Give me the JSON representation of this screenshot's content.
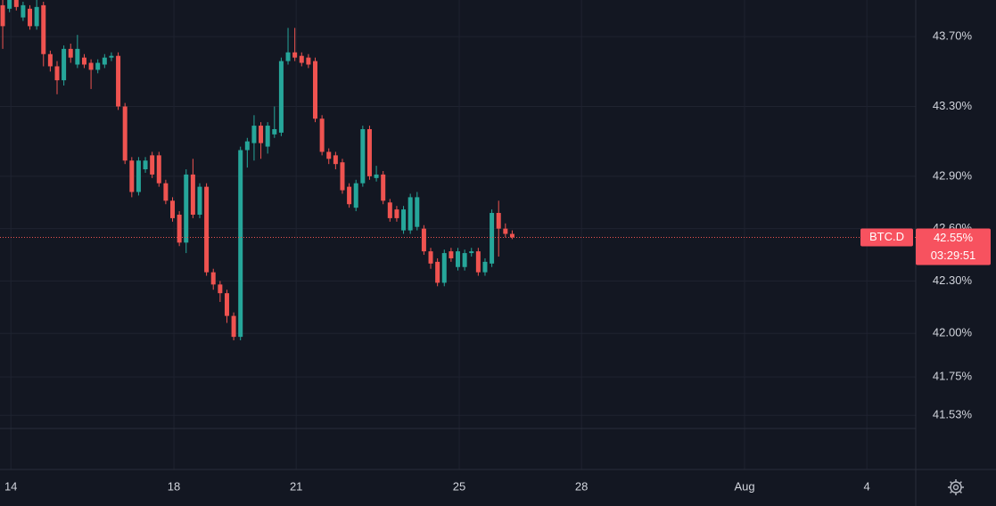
{
  "chart_data": {
    "type": "candlestick",
    "symbol": "BTC.D",
    "last_price": {
      "value": 42.55,
      "label": "42.55%"
    },
    "countdown": "03:29:51",
    "up_color": "#26a69a",
    "down_color": "#ef5350",
    "open": [
      43.88,
      43.86,
      43.91,
      43.81,
      43.86,
      43.76,
      43.88,
      43.6,
      43.53,
      43.45,
      43.63,
      43.54,
      43.58,
      43.55,
      43.51,
      43.54,
      43.58,
      43.59,
      43.3,
      42.99,
      42.81,
      42.94,
      43.02,
      43.02,
      42.86,
      42.76,
      42.68,
      42.52,
      42.91,
      42.68,
      42.84,
      42.35,
      42.28,
      42.23,
      42.1,
      41.98,
      43.05,
      43.09,
      43.19,
      43.07,
      43.14,
      43.15,
      43.56,
      43.61,
      43.59,
      43.58,
      43.56,
      43.23,
      43.04,
      43.02,
      42.98,
      42.84,
      42.72,
      42.86,
      43.17,
      42.89,
      42.91,
      42.75,
      42.71,
      42.59,
      42.59,
      42.61,
      42.6,
      42.47,
      42.41,
      42.29,
      42.47,
      42.38,
      42.38,
      42.46,
      42.47,
      42.35,
      42.4,
      42.69,
      42.6,
      42.57
    ],
    "high": [
      43.91,
      43.93,
      43.93,
      43.9,
      43.88,
      43.91,
      43.9,
      43.62,
      43.56,
      43.65,
      43.66,
      43.71,
      43.6,
      43.57,
      43.57,
      43.6,
      43.61,
      43.61,
      43.32,
      43.01,
      43.01,
      43.01,
      43.04,
      43.04,
      42.88,
      42.78,
      42.7,
      42.94,
      43.0,
      42.86,
      42.86,
      42.37,
      42.3,
      42.25,
      42.12,
      43.07,
      43.12,
      43.25,
      43.21,
      43.21,
      43.3,
      43.58,
      43.75,
      43.75,
      43.61,
      43.6,
      43.58,
      43.25,
      43.06,
      43.04,
      43.0,
      42.86,
      42.88,
      43.19,
      43.19,
      42.96,
      42.93,
      42.77,
      42.73,
      42.73,
      42.8,
      42.81,
      42.62,
      42.49,
      42.43,
      42.48,
      42.49,
      42.49,
      42.48,
      42.49,
      42.49,
      42.43,
      42.71,
      42.76,
      42.63,
      42.59
    ],
    "low": [
      43.63,
      43.84,
      43.85,
      43.79,
      43.74,
      43.74,
      43.53,
      43.5,
      43.37,
      43.42,
      43.55,
      43.52,
      43.52,
      43.4,
      43.49,
      43.52,
      43.56,
      43.28,
      42.97,
      42.78,
      42.79,
      42.92,
      42.89,
      42.84,
      42.74,
      42.64,
      42.5,
      42.46,
      42.66,
      42.66,
      42.33,
      42.25,
      42.18,
      42.06,
      41.96,
      41.96,
      42.95,
      42.99,
      43.0,
      43.03,
      43.12,
      43.13,
      43.54,
      43.56,
      43.53,
      43.52,
      43.21,
      43.02,
      42.97,
      42.94,
      42.8,
      42.72,
      42.7,
      42.84,
      42.88,
      42.87,
      42.74,
      42.64,
      42.64,
      42.57,
      42.57,
      42.59,
      42.45,
      42.37,
      42.27,
      42.27,
      42.41,
      42.36,
      42.36,
      42.44,
      42.33,
      42.33,
      42.38,
      42.44,
      42.55,
      42.54
    ],
    "close": [
      43.76,
      43.91,
      43.87,
      43.88,
      43.76,
      43.87,
      43.6,
      43.53,
      43.45,
      43.63,
      43.58,
      43.63,
      43.54,
      43.51,
      43.55,
      43.58,
      43.59,
      43.3,
      42.99,
      42.81,
      42.99,
      42.99,
      42.91,
      42.86,
      42.76,
      42.66,
      42.52,
      42.91,
      42.68,
      42.84,
      42.35,
      42.28,
      42.23,
      42.1,
      41.98,
      43.05,
      43.1,
      43.19,
      43.09,
      43.19,
      43.17,
      43.56,
      43.61,
      43.58,
      43.55,
      43.54,
      43.23,
      43.04,
      43.0,
      42.97,
      42.82,
      42.74,
      42.86,
      43.17,
      42.9,
      42.91,
      42.76,
      42.66,
      42.66,
      42.71,
      42.78,
      42.78,
      42.47,
      42.4,
      42.29,
      42.46,
      42.43,
      42.47,
      42.46,
      42.47,
      42.35,
      42.41,
      42.69,
      42.6,
      42.57,
      42.55
    ],
    "ylim": [
      41.46,
      43.91
    ],
    "yticks": [
      {
        "value": 43.7,
        "label": "43.70%"
      },
      {
        "value": 43.3,
        "label": "43.30%"
      },
      {
        "value": 42.9,
        "label": "42.90%"
      },
      {
        "value": 42.6,
        "label": "42.60%"
      },
      {
        "value": 42.3,
        "label": "42.30%"
      },
      {
        "value": 42.0,
        "label": "42.00%"
      },
      {
        "value": 41.75,
        "label": "41.75%"
      },
      {
        "value": 41.53,
        "label": "41.53%"
      }
    ],
    "xlim": [
      -0.4,
      134.4
    ],
    "xticks": [
      {
        "value": 1.2,
        "label": "14"
      },
      {
        "value": 25.2,
        "label": "18"
      },
      {
        "value": 43.2,
        "label": "21"
      },
      {
        "value": 67.2,
        "label": "25"
      },
      {
        "value": 85.2,
        "label": "28"
      },
      {
        "value": 109.2,
        "label": "Aug"
      },
      {
        "value": 127.2,
        "label": "4"
      }
    ],
    "grid": true
  }
}
